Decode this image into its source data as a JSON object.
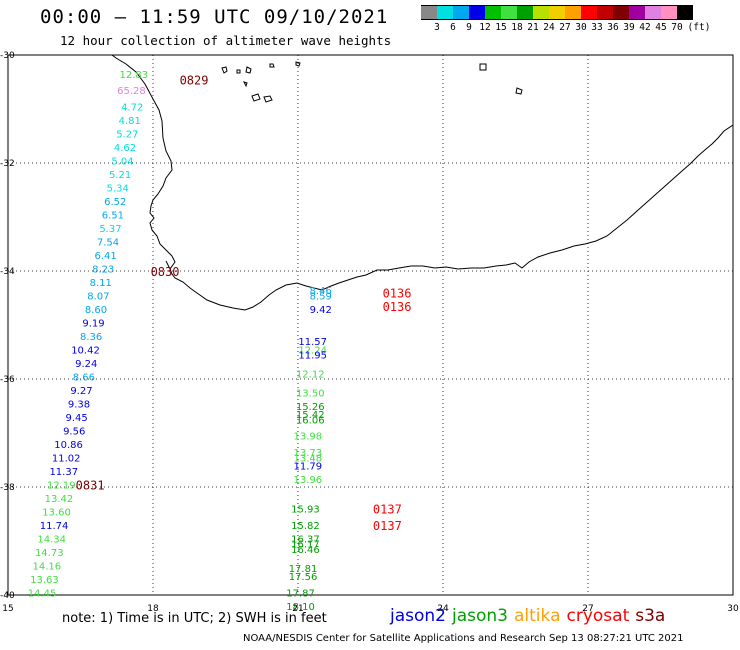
{
  "title": "00:00 – 11:59 UTC 09/10/2021",
  "subtitle": "12 hour collection of altimeter wave heights",
  "color_scale": {
    "colors": [
      "#888888",
      "#00e0e0",
      "#00a8f0",
      "#0000e8",
      "#00c000",
      "#40e040",
      "#00a000",
      "#b8e000",
      "#f0d000",
      "#ffa000",
      "#ff0000",
      "#c00000",
      "#800000",
      "#a000a0",
      "#e080e0",
      "#ff90c0",
      "#000000"
    ],
    "labels": [
      "3",
      "6",
      "9",
      "12",
      "15",
      "18",
      "21",
      "24",
      "27",
      "30",
      "33",
      "36",
      "39",
      "42",
      "45",
      "70",
      "(ft)"
    ]
  },
  "axes": {
    "lat_labels": [
      "-30",
      "-32",
      "-34",
      "-36",
      "-38",
      "-40"
    ],
    "lon_labels": [
      "15",
      "18",
      "21",
      "24",
      "27",
      "30"
    ]
  },
  "note": "note: 1) Time is in UTC; 2) SWH is in feet",
  "satellites": [
    {
      "name": "jason2",
      "color": "#0000e0"
    },
    {
      "name": "jason3",
      "color": "#00a000"
    },
    {
      "name": "altika",
      "color": "#ffa000"
    },
    {
      "name": "cryosat",
      "color": "#ff0000"
    },
    {
      "name": "s3a",
      "color": "#800000"
    }
  ],
  "footer": "NOAA/NESDIS Center for Satellite Applications and Research   Sep 13 08:27:21 UTC 2021",
  "tracks": [
    {
      "name": "west-coast",
      "points": [
        {
          "lon": 17.9,
          "lat": -30.35,
          "value": "12.83",
          "color": "#40e040"
        },
        {
          "lon": 17.85,
          "lat": -30.65,
          "value": "65.28",
          "color": "#e080e0"
        },
        {
          "lon": 17.8,
          "lat": -30.95,
          "value": "4.72",
          "color": "#00e0e0"
        },
        {
          "lon": 17.75,
          "lat": -31.2,
          "value": "4.81",
          "color": "#00e0e0"
        },
        {
          "lon": 17.7,
          "lat": -31.45,
          "value": "5.27",
          "color": "#00e0e0"
        },
        {
          "lon": 17.65,
          "lat": -31.7,
          "value": "4.62",
          "color": "#00e0e0"
        },
        {
          "lon": 17.6,
          "lat": -31.95,
          "value": "5.04",
          "color": "#00e0e0"
        },
        {
          "lon": 17.55,
          "lat": -32.2,
          "value": "5.21",
          "color": "#00e0e0"
        },
        {
          "lon": 17.5,
          "lat": -32.45,
          "value": "5.34",
          "color": "#00e0e0"
        },
        {
          "lon": 17.45,
          "lat": -32.7,
          "value": "6.52",
          "color": "#00a8f0"
        },
        {
          "lon": 17.4,
          "lat": -32.95,
          "value": "6.51",
          "color": "#00a8f0"
        },
        {
          "lon": 17.35,
          "lat": -33.2,
          "value": "5.37",
          "color": "#00e0e0"
        },
        {
          "lon": 17.3,
          "lat": -33.45,
          "value": "7.54",
          "color": "#00a8f0"
        },
        {
          "lon": 17.25,
          "lat": -33.7,
          "value": "6.41",
          "color": "#00a8f0"
        },
        {
          "lon": 17.2,
          "lat": -33.95,
          "value": "8.23",
          "color": "#00a8f0"
        },
        {
          "lon": 17.15,
          "lat": -34.2,
          "value": "8.11",
          "color": "#00a8f0"
        },
        {
          "lon": 17.1,
          "lat": -34.45,
          "value": "8.07",
          "color": "#00a8f0"
        },
        {
          "lon": 17.05,
          "lat": -34.7,
          "value": "8.60",
          "color": "#00a8f0"
        },
        {
          "lon": 17.0,
          "lat": -34.95,
          "value": "9.19",
          "color": "#0000e8"
        },
        {
          "lon": 16.95,
          "lat": -35.2,
          "value": "8.36",
          "color": "#00a8f0"
        },
        {
          "lon": 16.9,
          "lat": -35.45,
          "value": "10.42",
          "color": "#0000e8"
        },
        {
          "lon": 16.85,
          "lat": -35.7,
          "value": "9.24",
          "color": "#0000e8"
        },
        {
          "lon": 16.8,
          "lat": -35.95,
          "value": "8.66",
          "color": "#00a8f0"
        },
        {
          "lon": 16.75,
          "lat": -36.2,
          "value": "9.27",
          "color": "#0000e8"
        },
        {
          "lon": 16.7,
          "lat": -36.45,
          "value": "9.38",
          "color": "#0000e8"
        },
        {
          "lon": 16.65,
          "lat": -36.7,
          "value": "9.45",
          "color": "#0000e8"
        },
        {
          "lon": 16.6,
          "lat": -36.95,
          "value": "9.56",
          "color": "#0000e8"
        },
        {
          "lon": 16.55,
          "lat": -37.2,
          "value": "10.86",
          "color": "#0000e8"
        },
        {
          "lon": 16.5,
          "lat": -37.45,
          "value": "11.02",
          "color": "#0000e8"
        },
        {
          "lon": 16.45,
          "lat": -37.7,
          "value": "11.37",
          "color": "#0000e8"
        },
        {
          "lon": 16.4,
          "lat": -37.95,
          "value": "12.19",
          "color": "#40e040"
        },
        {
          "lon": 16.35,
          "lat": -38.2,
          "value": "13.42",
          "color": "#40e040"
        },
        {
          "lon": 16.3,
          "lat": -38.45,
          "value": "13.60",
          "color": "#40e040"
        },
        {
          "lon": 16.25,
          "lat": -38.7,
          "value": "11.74",
          "color": "#0000e8"
        },
        {
          "lon": 16.2,
          "lat": -38.95,
          "value": "14.34",
          "color": "#40e040"
        },
        {
          "lon": 16.15,
          "lat": -39.2,
          "value": "14.73",
          "color": "#40e040"
        },
        {
          "lon": 16.1,
          "lat": -39.45,
          "value": "14.16",
          "color": "#40e040"
        },
        {
          "lon": 16.05,
          "lat": -39.7,
          "value": "13.63",
          "color": "#40e040"
        },
        {
          "lon": 16.0,
          "lat": -39.95,
          "value": "14.45",
          "color": "#40e040"
        }
      ]
    },
    {
      "name": "south-track",
      "points": [
        {
          "lon": 21.7,
          "lat": -34.35,
          "value": "8.46",
          "color": "#00a8f0"
        },
        {
          "lon": 21.7,
          "lat": -34.45,
          "value": "8.59",
          "color": "#00a8f0"
        },
        {
          "lon": 21.7,
          "lat": -34.7,
          "value": "9.42",
          "color": "#0000e8"
        },
        {
          "lon": 21.6,
          "lat": -35.3,
          "value": "11.57",
          "color": "#0000e8"
        },
        {
          "lon": 21.6,
          "lat": -35.45,
          "value": "12.24",
          "color": "#40e040"
        },
        {
          "lon": 21.6,
          "lat": -35.55,
          "value": "11.95",
          "color": "#0000e8"
        },
        {
          "lon": 21.55,
          "lat": -35.9,
          "value": "12.12",
          "color": "#40e040"
        },
        {
          "lon": 21.55,
          "lat": -36.25,
          "value": "13.50",
          "color": "#40e040"
        },
        {
          "lon": 21.55,
          "lat": -36.5,
          "value": "15.26",
          "color": "#00a000"
        },
        {
          "lon": 21.55,
          "lat": -36.65,
          "value": "15.42",
          "color": "#00a000"
        },
        {
          "lon": 21.55,
          "lat": -36.75,
          "value": "16.06",
          "color": "#00a000"
        },
        {
          "lon": 21.5,
          "lat": -37.05,
          "value": "13.98",
          "color": "#40e040"
        },
        {
          "lon": 21.5,
          "lat": -37.35,
          "value": "13.73",
          "color": "#40e040"
        },
        {
          "lon": 21.5,
          "lat": -37.45,
          "value": "13.48",
          "color": "#40e040"
        },
        {
          "lon": 21.5,
          "lat": -37.6,
          "value": "11.79",
          "color": "#0000e8"
        },
        {
          "lon": 21.5,
          "lat": -37.85,
          "value": "13.96",
          "color": "#40e040"
        },
        {
          "lon": 21.45,
          "lat": -38.4,
          "value": "15.93",
          "color": "#00a000"
        },
        {
          "lon": 21.45,
          "lat": -38.7,
          "value": "15.82",
          "color": "#00a000"
        },
        {
          "lon": 21.45,
          "lat": -38.95,
          "value": "16.37",
          "color": "#00a000"
        },
        {
          "lon": 21.45,
          "lat": -39.05,
          "value": "16.17",
          "color": "#00a000"
        },
        {
          "lon": 21.45,
          "lat": -39.15,
          "value": "16.46",
          "color": "#00a000"
        },
        {
          "lon": 21.4,
          "lat": -39.5,
          "value": "17.81",
          "color": "#00a000"
        },
        {
          "lon": 21.4,
          "lat": -39.65,
          "value": "17.56",
          "color": "#00a000"
        },
        {
          "lon": 21.35,
          "lat": -39.95,
          "value": "17.87",
          "color": "#00a000"
        },
        {
          "lon": 21.35,
          "lat": -40.2,
          "value": "18.10",
          "color": "#00a000"
        }
      ]
    }
  ],
  "time_labels": [
    {
      "text": "0829",
      "lon": 18.55,
      "lat": -30.45,
      "color": "#800000"
    },
    {
      "text": "0830",
      "lon": 17.95,
      "lat": -34.0,
      "color": "#800000"
    },
    {
      "text": "0831",
      "lon": 16.4,
      "lat": -37.95,
      "color": "#800000"
    },
    {
      "text": "0136",
      "lon": 22.75,
      "lat": -34.4,
      "color": "#ff0000"
    },
    {
      "text": "0136",
      "lon": 22.75,
      "lat": -34.65,
      "color": "#ff0000"
    },
    {
      "text": "0137",
      "lon": 22.55,
      "lat": -38.4,
      "color": "#ff0000"
    },
    {
      "text": "0137",
      "lon": 22.55,
      "lat": -38.7,
      "color": "#ff0000"
    }
  ]
}
